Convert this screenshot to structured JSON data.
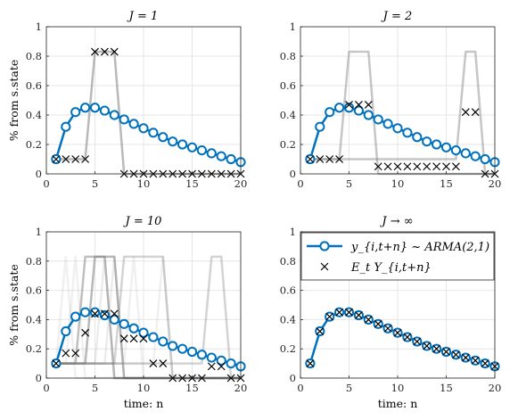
{
  "chart_data": [
    {
      "type": "line",
      "title": "J = 1",
      "xlabel": "",
      "ylabel": "% from s.state",
      "xlim": [
        0,
        20
      ],
      "ylim": [
        0,
        1
      ],
      "xticks": [
        0,
        5,
        10,
        15,
        20
      ],
      "yticks": [
        0,
        0.2,
        0.4,
        0.6,
        0.8,
        1
      ],
      "ytick_labels": [
        "0",
        "0.2",
        "0.4",
        "0.6",
        "0.8",
        "1"
      ],
      "grid": true,
      "x": [
        1,
        2,
        3,
        4,
        5,
        6,
        7,
        8,
        9,
        10,
        11,
        12,
        13,
        14,
        15,
        16,
        17,
        18,
        19,
        20
      ],
      "arma": [
        0.1,
        0.32,
        0.42,
        0.45,
        0.45,
        0.43,
        0.4,
        0.37,
        0.34,
        0.31,
        0.28,
        0.25,
        0.22,
        0.2,
        0.18,
        0.16,
        0.14,
        0.12,
        0.1,
        0.08
      ],
      "expectation": [
        0.1,
        0.1,
        0.1,
        0.1,
        0.83,
        0.83,
        0.83,
        0.0,
        0.0,
        0.0,
        0.0,
        0.0,
        0.0,
        0.0,
        0.0,
        0.0,
        0.0,
        0.0,
        0.0,
        0.0
      ],
      "paths": [
        {
          "values": [
            0.1,
            0.1,
            0.1,
            0.1,
            0.83,
            0.83,
            0.83,
            0.0,
            0.0,
            0.0,
            0.0,
            0.0,
            0.0,
            0.0,
            0.0,
            0.0,
            0.0,
            0.0,
            0.0,
            0.0
          ],
          "opacity": 0.55
        }
      ]
    },
    {
      "type": "line",
      "title": "J = 2",
      "xlabel": "",
      "ylabel": "",
      "xlim": [
        0,
        20
      ],
      "ylim": [
        0,
        1
      ],
      "xticks": [
        0,
        5,
        10,
        15,
        20
      ],
      "yticks": [
        0,
        0.2,
        0.4,
        0.6,
        0.8,
        1
      ],
      "ytick_labels": [
        "0",
        "0.2",
        "0.4",
        "0.6",
        "0.8",
        "1"
      ],
      "grid": true,
      "x": [
        1,
        2,
        3,
        4,
        5,
        6,
        7,
        8,
        9,
        10,
        11,
        12,
        13,
        14,
        15,
        16,
        17,
        18,
        19,
        20
      ],
      "arma": [
        0.1,
        0.32,
        0.42,
        0.45,
        0.45,
        0.43,
        0.4,
        0.37,
        0.34,
        0.31,
        0.28,
        0.25,
        0.22,
        0.2,
        0.18,
        0.16,
        0.14,
        0.12,
        0.1,
        0.08
      ],
      "expectation": [
        0.1,
        0.1,
        0.1,
        0.1,
        0.47,
        0.47,
        0.47,
        0.05,
        0.05,
        0.05,
        0.05,
        0.05,
        0.05,
        0.05,
        0.05,
        0.05,
        0.42,
        0.42,
        0.0,
        0.0
      ],
      "paths": [
        {
          "values": [
            0.1,
            0.1,
            0.1,
            0.1,
            0.83,
            0.83,
            0.83,
            0.0,
            0.0,
            0.0,
            0.0,
            0.0,
            0.0,
            0.0,
            0.0,
            0.0,
            0.0,
            0.0,
            0.0,
            0.0
          ],
          "opacity": 0.45
        },
        {
          "values": [
            0.1,
            0.1,
            0.1,
            0.1,
            0.1,
            0.1,
            0.1,
            0.1,
            0.1,
            0.1,
            0.1,
            0.1,
            0.1,
            0.1,
            0.1,
            0.1,
            0.83,
            0.83,
            0.0,
            0.0
          ],
          "opacity": 0.45
        }
      ]
    },
    {
      "type": "line",
      "title": "J = 10",
      "xlabel": "time: n",
      "ylabel": "% from s.state",
      "xlim": [
        0,
        20
      ],
      "ylim": [
        0,
        1
      ],
      "xticks": [
        0,
        5,
        10,
        15,
        20
      ],
      "yticks": [
        0,
        0.2,
        0.4,
        0.6,
        0.8,
        1
      ],
      "ytick_labels": [
        "0",
        "0.2",
        "0.4",
        "0.6",
        "0.8",
        "1"
      ],
      "grid": true,
      "x": [
        1,
        2,
        3,
        4,
        5,
        6,
        7,
        8,
        9,
        10,
        11,
        12,
        13,
        14,
        15,
        16,
        17,
        18,
        19,
        20
      ],
      "arma": [
        0.1,
        0.32,
        0.42,
        0.45,
        0.45,
        0.43,
        0.4,
        0.37,
        0.34,
        0.31,
        0.28,
        0.25,
        0.22,
        0.2,
        0.18,
        0.16,
        0.14,
        0.12,
        0.1,
        0.08
      ],
      "expectation": [
        0.1,
        0.17,
        0.17,
        0.31,
        0.44,
        0.44,
        0.44,
        0.27,
        0.27,
        0.27,
        0.1,
        0.1,
        0.0,
        0.0,
        0.0,
        0.0,
        0.08,
        0.08,
        0.0,
        0.0
      ],
      "paths": [
        {
          "values": [
            0.1,
            0.1,
            0.1,
            0.1,
            0.83,
            0.83,
            0.83,
            0.0,
            0.0,
            0.0,
            0.0,
            0.0,
            0.0,
            0.0,
            0.0,
            0.0,
            0.0,
            0.0,
            0.0,
            0.0
          ],
          "opacity": 0.55
        },
        {
          "values": [
            0.1,
            0.1,
            0.1,
            0.83,
            0.83,
            0.83,
            0.0,
            0.0,
            0.0,
            0.0,
            0.0,
            0.0,
            0.0,
            0.0,
            0.0,
            0.0,
            0.0,
            0.0,
            0.0,
            0.0
          ],
          "opacity": 0.5
        },
        {
          "values": [
            0.1,
            0.1,
            0.1,
            0.1,
            0.1,
            0.1,
            0.1,
            0.83,
            0.83,
            0.83,
            0.83,
            0.83,
            0.0,
            0.0,
            0.0,
            0.0,
            0.0,
            0.0,
            0.0,
            0.0
          ],
          "opacity": 0.35
        },
        {
          "values": [
            0.1,
            0.1,
            0.1,
            0.1,
            0.1,
            0.1,
            0.1,
            0.1,
            0.1,
            0.1,
            0.1,
            0.1,
            0.1,
            0.1,
            0.1,
            0.1,
            0.83,
            0.83,
            0.0,
            0.0
          ],
          "opacity": 0.35
        },
        {
          "values": [
            0.1,
            0.83,
            0.0,
            0.0,
            0.0,
            0.0,
            0.0,
            0.0,
            0.0,
            0.0,
            0.0,
            0.0,
            0.0,
            0.0,
            0.0,
            0.0,
            0.0,
            0.0,
            0.0,
            0.0
          ],
          "opacity": 0.12
        },
        {
          "values": [
            0.1,
            0.1,
            0.83,
            0.0,
            0.0,
            0.0,
            0.0,
            0.0,
            0.0,
            0.0,
            0.0,
            0.0,
            0.0,
            0.0,
            0.0,
            0.0,
            0.0,
            0.0,
            0.0,
            0.0
          ],
          "opacity": 0.12
        },
        {
          "values": [
            0.1,
            0.1,
            0.1,
            0.1,
            0.1,
            0.83,
            0.0,
            0.0,
            0.0,
            0.0,
            0.0,
            0.0,
            0.0,
            0.0,
            0.0,
            0.0,
            0.0,
            0.0,
            0.0,
            0.0
          ],
          "opacity": 0.15
        },
        {
          "values": [
            0.1,
            0.1,
            0.1,
            0.1,
            0.1,
            0.1,
            0.83,
            0.0,
            0.0,
            0.0,
            0.0,
            0.0,
            0.0,
            0.0,
            0.0,
            0.0,
            0.0,
            0.0,
            0.0,
            0.0
          ],
          "opacity": 0.15
        },
        {
          "values": [
            0.1,
            0.1,
            0.1,
            0.1,
            0.1,
            0.1,
            0.1,
            0.1,
            0.83,
            0.0,
            0.0,
            0.0,
            0.0,
            0.0,
            0.0,
            0.0,
            0.0,
            0.0,
            0.0,
            0.0
          ],
          "opacity": 0.12
        },
        {
          "values": [
            0.1,
            0.1,
            0.1,
            0.1,
            0.1,
            0.1,
            0.1,
            0.1,
            0.1,
            0.1,
            0.1,
            0.83,
            0.0,
            0.0,
            0.0,
            0.0,
            0.0,
            0.0,
            0.0,
            0.0
          ],
          "opacity": 0.12
        }
      ]
    },
    {
      "type": "line",
      "title": "J → ∞",
      "xlabel": "time: n",
      "ylabel": "",
      "xlim": [
        0,
        20
      ],
      "ylim": [
        0,
        1
      ],
      "xticks": [
        0,
        5,
        10,
        15,
        20
      ],
      "yticks": [
        0,
        0.2,
        0.4,
        0.6,
        0.8,
        1
      ],
      "ytick_labels": [
        "0",
        "0.2",
        "0.4",
        "0.6",
        "0.8",
        "1"
      ],
      "grid": true,
      "x": [
        1,
        2,
        3,
        4,
        5,
        6,
        7,
        8,
        9,
        10,
        11,
        12,
        13,
        14,
        15,
        16,
        17,
        18,
        19,
        20
      ],
      "arma": [
        0.1,
        0.32,
        0.42,
        0.45,
        0.45,
        0.43,
        0.4,
        0.37,
        0.34,
        0.31,
        0.28,
        0.25,
        0.22,
        0.2,
        0.18,
        0.16,
        0.14,
        0.12,
        0.1,
        0.08
      ],
      "expectation": [
        0.1,
        0.32,
        0.42,
        0.45,
        0.45,
        0.43,
        0.4,
        0.37,
        0.34,
        0.31,
        0.28,
        0.25,
        0.22,
        0.2,
        0.18,
        0.16,
        0.14,
        0.12,
        0.1,
        0.08
      ],
      "paths": [],
      "legend": {
        "placement": "top",
        "entries": [
          "y_{i,t+n} ~ ARMA(2,1)",
          "E_t Y_{i,t+n}"
        ]
      }
    }
  ],
  "colors": {
    "arma_line": "#0072BD",
    "expectation_marker": "#000000",
    "path_line": "#808080",
    "grid": "#e6e6e6",
    "axis": "#262626"
  }
}
